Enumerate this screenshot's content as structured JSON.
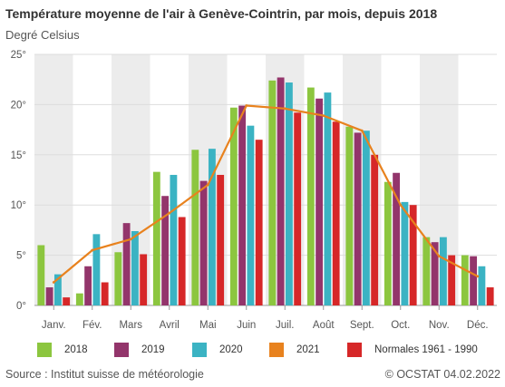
{
  "header": {
    "title": "Température moyenne de l'air à Genève-Cointrin, par mois, depuis 2018",
    "unit_label": "Degré Celsius"
  },
  "footer": {
    "source": "Source : Institut suisse de météorologie",
    "copyright": "© OCSTAT 04.02.2022"
  },
  "colors": {
    "2018": "#8cc63f",
    "2019": "#93356b",
    "2020": "#3bb3c3",
    "2021": "#e8821e",
    "normales": "#d62728",
    "band": "#ececec",
    "grid": "#dddddd"
  },
  "chart_data": {
    "type": "bar",
    "categories": [
      "Janv.",
      "Fév.",
      "Mars",
      "Avril",
      "Mai",
      "Juin",
      "Juil.",
      "Août",
      "Sept.",
      "Oct.",
      "Nov.",
      "Déc."
    ],
    "ylim": [
      0,
      25
    ],
    "yticks": [
      0,
      5,
      10,
      15,
      20,
      25
    ],
    "ytick_labels": [
      "0°",
      "5°",
      "10°",
      "15°",
      "20°",
      "25°"
    ],
    "grid": true,
    "legend_position": "bottom",
    "series": [
      {
        "name": "2018",
        "type": "bar",
        "values": [
          6.0,
          1.2,
          5.3,
          13.3,
          15.5,
          19.7,
          22.4,
          21.7,
          17.8,
          12.3,
          6.8,
          5.0
        ]
      },
      {
        "name": "2019",
        "type": "bar",
        "values": [
          1.8,
          3.9,
          8.2,
          10.9,
          12.4,
          19.9,
          22.7,
          20.6,
          17.2,
          13.2,
          6.3,
          4.9
        ]
      },
      {
        "name": "2020",
        "type": "bar",
        "values": [
          3.1,
          7.1,
          7.4,
          13.0,
          15.6,
          17.9,
          22.2,
          21.2,
          17.4,
          10.3,
          6.8,
          3.9
        ]
      },
      {
        "name": "2021",
        "type": "line",
        "values": [
          2.3,
          5.5,
          6.6,
          9.2,
          12.0,
          19.9,
          19.6,
          18.9,
          17.4,
          10.0,
          4.9,
          2.9
        ]
      },
      {
        "name": "Normales 1961 - 1990",
        "type": "bar",
        "values": [
          0.8,
          2.3,
          5.1,
          8.8,
          13.0,
          16.5,
          19.2,
          18.3,
          15.0,
          10.0,
          5.0,
          1.8
        ]
      }
    ]
  }
}
